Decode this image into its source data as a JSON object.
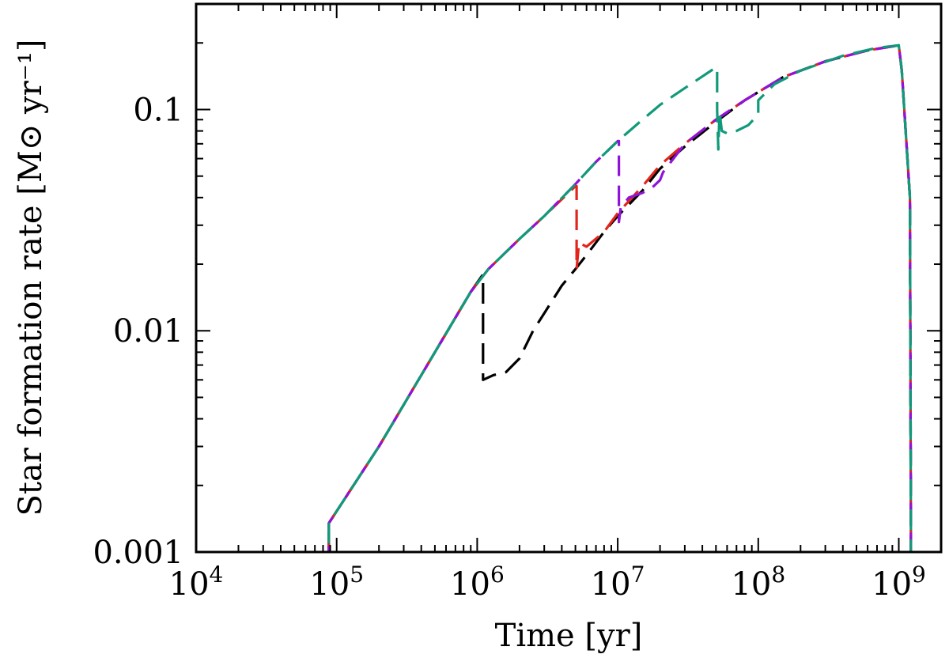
{
  "chart_data": {
    "type": "line",
    "xlabel": "Time [yr]",
    "ylabel": "Star formation rate [M⊙ yr⁻¹]",
    "xscale": "log",
    "yscale": "log",
    "xlim": [
      10000,
      2000000000
    ],
    "ylim": [
      0.001,
      0.3
    ],
    "grid": false,
    "legend": "none",
    "x_ticks": [
      {
        "value": 10000,
        "base": "10",
        "exp": "4"
      },
      {
        "value": 100000,
        "base": "10",
        "exp": "5"
      },
      {
        "value": 1000000,
        "base": "10",
        "exp": "6"
      },
      {
        "value": 10000000,
        "base": "10",
        "exp": "7"
      },
      {
        "value": 100000000,
        "base": "10",
        "exp": "8"
      },
      {
        "value": 1000000000,
        "base": "10",
        "exp": "9"
      }
    ],
    "y_ticks": [
      {
        "value": 0.001,
        "label": "0.001"
      },
      {
        "value": 0.01,
        "label": "0.01"
      },
      {
        "value": 0.1,
        "label": "0.1"
      }
    ],
    "series": [
      {
        "color": "#000000",
        "points": [
          [
            88000,
            0.001
          ],
          [
            88000,
            0.00135
          ],
          [
            200000,
            0.003
          ],
          [
            500000,
            0.008
          ],
          [
            900000,
            0.015
          ],
          [
            1100000,
            0.018
          ],
          [
            1100000,
            0.015
          ],
          [
            1100000,
            0.0065
          ],
          [
            1100000,
            0.006
          ],
          [
            1300000,
            0.0063
          ],
          [
            1600000,
            0.0065
          ],
          [
            2000000,
            0.0075
          ],
          [
            2500000,
            0.01
          ],
          [
            3000000,
            0.012
          ],
          [
            4000000,
            0.016
          ],
          [
            5000000,
            0.019
          ],
          [
            6000000,
            0.022
          ],
          [
            8000000,
            0.028
          ],
          [
            10000000,
            0.033
          ],
          [
            15000000,
            0.043
          ],
          [
            20000000,
            0.054
          ],
          [
            30000000,
            0.068
          ],
          [
            50000000,
            0.088
          ],
          [
            80000000,
            0.11
          ],
          [
            150000000,
            0.14
          ],
          [
            300000000,
            0.165
          ],
          [
            600000000,
            0.185
          ],
          [
            1000000000,
            0.195
          ],
          [
            1050000000,
            0.15
          ],
          [
            1200000000,
            0.04
          ],
          [
            1220000000,
            0.001
          ]
        ]
      },
      {
        "color": "#e3241b",
        "points": [
          [
            88000,
            0.001
          ],
          [
            88000,
            0.00135
          ],
          [
            200000,
            0.003
          ],
          [
            500000,
            0.008
          ],
          [
            900000,
            0.015
          ],
          [
            1200000,
            0.019
          ],
          [
            2000000,
            0.026
          ],
          [
            3000000,
            0.033
          ],
          [
            5000000,
            0.045
          ],
          [
            5100000,
            0.045
          ],
          [
            5100000,
            0.033
          ],
          [
            5100000,
            0.019
          ],
          [
            5300000,
            0.025
          ],
          [
            6000000,
            0.024
          ],
          [
            8000000,
            0.028
          ],
          [
            10000000,
            0.034
          ],
          [
            15000000,
            0.045
          ],
          [
            20000000,
            0.056
          ],
          [
            30000000,
            0.07
          ],
          [
            50000000,
            0.09
          ],
          [
            80000000,
            0.11
          ],
          [
            150000000,
            0.14
          ],
          [
            300000000,
            0.165
          ],
          [
            600000000,
            0.185
          ],
          [
            1000000000,
            0.195
          ],
          [
            1050000000,
            0.15
          ],
          [
            1200000000,
            0.04
          ],
          [
            1220000000,
            0.001
          ]
        ]
      },
      {
        "color": "#9013d9",
        "points": [
          [
            88000,
            0.001
          ],
          [
            88000,
            0.00135
          ],
          [
            200000,
            0.003
          ],
          [
            500000,
            0.008
          ],
          [
            900000,
            0.015
          ],
          [
            1200000,
            0.019
          ],
          [
            2000000,
            0.026
          ],
          [
            3000000,
            0.033
          ],
          [
            5000000,
            0.046
          ],
          [
            7000000,
            0.058
          ],
          [
            10000000,
            0.072
          ],
          [
            10200000,
            0.072
          ],
          [
            10200000,
            0.04
          ],
          [
            10200000,
            0.031
          ],
          [
            10500000,
            0.036
          ],
          [
            12000000,
            0.04
          ],
          [
            15000000,
            0.042
          ],
          [
            18000000,
            0.045
          ],
          [
            20000000,
            0.048
          ],
          [
            21000000,
            0.052
          ],
          [
            30000000,
            0.07
          ],
          [
            50000000,
            0.09
          ],
          [
            80000000,
            0.11
          ],
          [
            150000000,
            0.14
          ],
          [
            300000000,
            0.165
          ],
          [
            600000000,
            0.185
          ],
          [
            1000000000,
            0.195
          ],
          [
            1050000000,
            0.15
          ],
          [
            1200000000,
            0.04
          ],
          [
            1220000000,
            0.001
          ]
        ]
      },
      {
        "color": "#119a7a",
        "points": [
          [
            88000,
            0.001
          ],
          [
            88000,
            0.00135
          ],
          [
            200000,
            0.003
          ],
          [
            500000,
            0.008
          ],
          [
            900000,
            0.015
          ],
          [
            1200000,
            0.019
          ],
          [
            2000000,
            0.026
          ],
          [
            3000000,
            0.033
          ],
          [
            5000000,
            0.046
          ],
          [
            7000000,
            0.058
          ],
          [
            10000000,
            0.072
          ],
          [
            15000000,
            0.09
          ],
          [
            20000000,
            0.105
          ],
          [
            30000000,
            0.125
          ],
          [
            50000000,
            0.155
          ],
          [
            51000000,
            0.155
          ],
          [
            51000000,
            0.1
          ],
          [
            52000000,
            0.066
          ],
          [
            53000000,
            0.098
          ],
          [
            55000000,
            0.08
          ],
          [
            60000000,
            0.078
          ],
          [
            70000000,
            0.08
          ],
          [
            85000000,
            0.085
          ],
          [
            100000000,
            0.095
          ],
          [
            100000000,
            0.11
          ],
          [
            130000000,
            0.13
          ],
          [
            200000000,
            0.15
          ],
          [
            400000000,
            0.175
          ],
          [
            700000000,
            0.19
          ],
          [
            1000000000,
            0.195
          ],
          [
            1050000000,
            0.15
          ],
          [
            1200000000,
            0.04
          ],
          [
            1220000000,
            0.001
          ]
        ]
      }
    ]
  }
}
